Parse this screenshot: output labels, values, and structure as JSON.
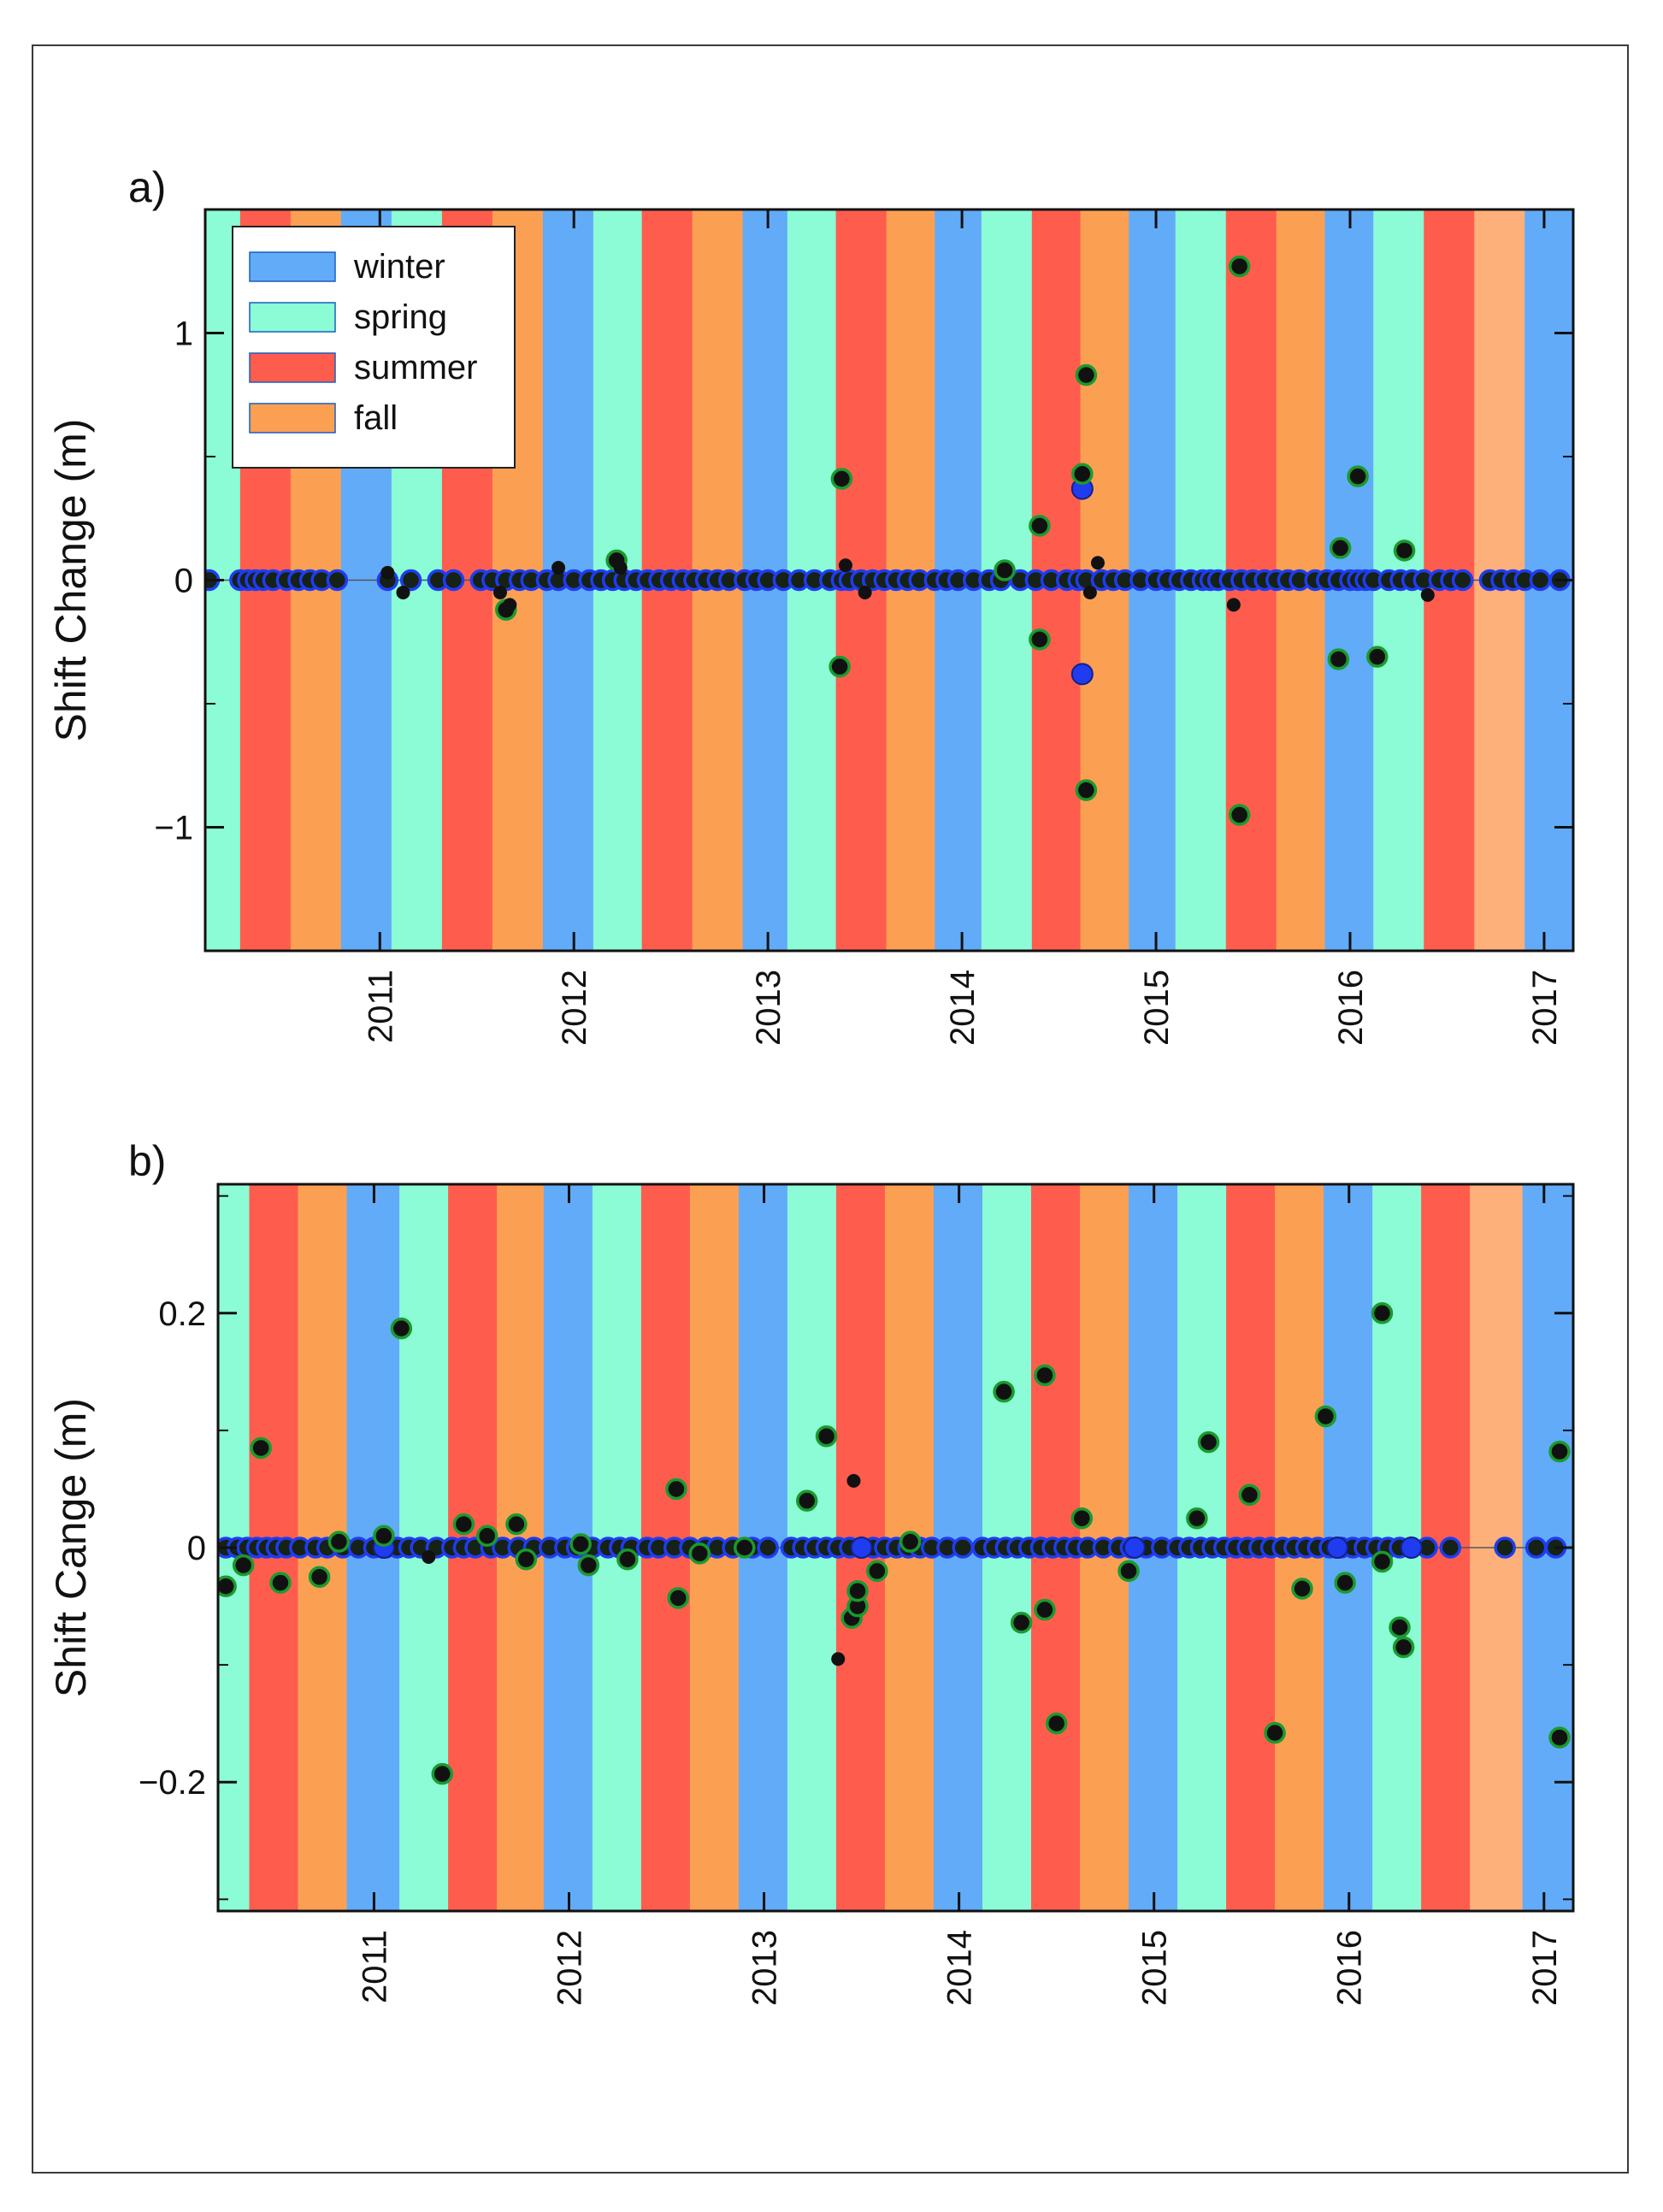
{
  "figure": {
    "panel_a_label": "a)",
    "panel_b_label": "b)"
  },
  "colors": {
    "winter": "#62abf8",
    "spring": "#8bfcd6",
    "summer": "#fe5d4e",
    "fall": "#fba053",
    "fall_light": "#fdb07a",
    "marker_blue": "#1f3cf0",
    "marker_green": "#1a9a2e",
    "marker_black": "#111111"
  },
  "legend": {
    "items": [
      {
        "label": "winter",
        "season": "winter"
      },
      {
        "label": "spring",
        "season": "spring"
      },
      {
        "label": "summer",
        "season": "summer"
      },
      {
        "label": "fall",
        "season": "fall"
      }
    ]
  },
  "chart_data": [
    {
      "type": "scatter",
      "panel": "a",
      "ylabel": "Shift Change (m)",
      "xlim": [
        2010.1,
        2017.15
      ],
      "ylim": [
        -1.5,
        1.5
      ],
      "yticks": [
        -1,
        0,
        1
      ],
      "ytick_labels": [
        "−1",
        "0",
        "1"
      ],
      "xticks": [
        2011,
        2012,
        2013,
        2014,
        2015,
        2016,
        2017
      ],
      "xtick_labels": [
        "2011",
        "2012",
        "2013",
        "2014",
        "2015",
        "2016",
        "2017"
      ],
      "legend_position": "top-left",
      "season_bands": [
        {
          "start": 2010.1,
          "end": 2010.28,
          "season": "spring"
        },
        {
          "start": 2010.28,
          "end": 2010.54,
          "season": "summer"
        },
        {
          "start": 2010.54,
          "end": 2010.8,
          "season": "fall"
        },
        {
          "start": 2010.8,
          "end": 2011.06,
          "season": "winter"
        },
        {
          "start": 2011.06,
          "end": 2011.32,
          "season": "spring"
        },
        {
          "start": 2011.32,
          "end": 2011.58,
          "season": "summer"
        },
        {
          "start": 2011.58,
          "end": 2011.84,
          "season": "fall"
        },
        {
          "start": 2011.84,
          "end": 2012.1,
          "season": "winter"
        },
        {
          "start": 2012.1,
          "end": 2012.35,
          "season": "spring"
        },
        {
          "start": 2012.35,
          "end": 2012.61,
          "season": "summer"
        },
        {
          "start": 2012.61,
          "end": 2012.87,
          "season": "fall"
        },
        {
          "start": 2012.87,
          "end": 2013.1,
          "season": "winter"
        },
        {
          "start": 2013.1,
          "end": 2013.35,
          "season": "spring"
        },
        {
          "start": 2013.35,
          "end": 2013.61,
          "season": "summer"
        },
        {
          "start": 2013.61,
          "end": 2013.86,
          "season": "fall"
        },
        {
          "start": 2013.86,
          "end": 2014.1,
          "season": "winter"
        },
        {
          "start": 2014.1,
          "end": 2014.36,
          "season": "spring"
        },
        {
          "start": 2014.36,
          "end": 2014.61,
          "season": "summer"
        },
        {
          "start": 2014.61,
          "end": 2014.86,
          "season": "fall"
        },
        {
          "start": 2014.86,
          "end": 2015.1,
          "season": "winter"
        },
        {
          "start": 2015.1,
          "end": 2015.36,
          "season": "spring"
        },
        {
          "start": 2015.36,
          "end": 2015.62,
          "season": "summer"
        },
        {
          "start": 2015.62,
          "end": 2015.87,
          "season": "fall"
        },
        {
          "start": 2015.87,
          "end": 2016.12,
          "season": "winter"
        },
        {
          "start": 2016.12,
          "end": 2016.38,
          "season": "spring"
        },
        {
          "start": 2016.38,
          "end": 2016.64,
          "season": "summer"
        },
        {
          "start": 2016.64,
          "end": 2016.9,
          "season": "fall_light"
        },
        {
          "start": 2016.9,
          "end": 2017.15,
          "season": "winter"
        }
      ],
      "zero_series": [
        2010.12,
        2010.28,
        2010.32,
        2010.36,
        2010.4,
        2010.45,
        2010.52,
        2010.58,
        2010.64,
        2010.7,
        2010.78,
        2011.04,
        2011.16,
        2011.3,
        2011.38,
        2011.52,
        2011.58,
        2011.65,
        2011.72,
        2011.78,
        2011.86,
        2011.92,
        2012.0,
        2012.08,
        2012.14,
        2012.2,
        2012.26,
        2012.32,
        2012.38,
        2012.44,
        2012.5,
        2012.56,
        2012.62,
        2012.68,
        2012.74,
        2012.8,
        2012.88,
        2012.94,
        2013.0,
        2013.08,
        2013.16,
        2013.24,
        2013.32,
        2013.38,
        2013.42,
        2013.48,
        2013.54,
        2013.6,
        2013.66,
        2013.72,
        2013.78,
        2013.86,
        2013.92,
        2013.98,
        2014.06,
        2014.14,
        2014.2,
        2014.3,
        2014.38,
        2014.46,
        2014.54,
        2014.6,
        2014.64,
        2014.72,
        2014.78,
        2014.84,
        2014.92,
        2015.0,
        2015.06,
        2015.12,
        2015.18,
        2015.24,
        2015.28,
        2015.32,
        2015.38,
        2015.44,
        2015.5,
        2015.56,
        2015.62,
        2015.68,
        2015.74,
        2015.82,
        2015.88,
        2015.94,
        2016.0,
        2016.04,
        2016.08,
        2016.12,
        2016.2,
        2016.26,
        2016.32,
        2016.38,
        2016.46,
        2016.52,
        2016.58,
        2016.72,
        2016.78,
        2016.84,
        2016.9,
        2016.98,
        2017.08
      ],
      "green_points": [
        {
          "x": 2011.65,
          "y": -0.12
        },
        {
          "x": 2012.22,
          "y": 0.08
        },
        {
          "x": 2013.38,
          "y": 0.41
        },
        {
          "x": 2013.37,
          "y": -0.35
        },
        {
          "x": 2014.22,
          "y": 0.04
        },
        {
          "x": 2014.4,
          "y": 0.22
        },
        {
          "x": 2014.4,
          "y": -0.24
        },
        {
          "x": 2014.62,
          "y": 0.43
        },
        {
          "x": 2014.64,
          "y": 0.83
        },
        {
          "x": 2014.64,
          "y": -0.85
        },
        {
          "x": 2015.43,
          "y": 1.27
        },
        {
          "x": 2015.43,
          "y": -0.95
        },
        {
          "x": 2015.95,
          "y": 0.13
        },
        {
          "x": 2015.94,
          "y": -0.32
        },
        {
          "x": 2016.04,
          "y": 0.42
        },
        {
          "x": 2016.14,
          "y": -0.31
        },
        {
          "x": 2016.28,
          "y": 0.12
        }
      ],
      "black_points": [
        {
          "x": 2011.04,
          "y": 0.03
        },
        {
          "x": 2011.12,
          "y": -0.05
        },
        {
          "x": 2011.62,
          "y": -0.05
        },
        {
          "x": 2011.67,
          "y": -0.1
        },
        {
          "x": 2011.92,
          "y": 0.05
        },
        {
          "x": 2012.24,
          "y": 0.05
        },
        {
          "x": 2013.4,
          "y": 0.06
        },
        {
          "x": 2013.5,
          "y": -0.05
        },
        {
          "x": 2014.7,
          "y": 0.07
        },
        {
          "x": 2014.66,
          "y": -0.05
        },
        {
          "x": 2015.4,
          "y": -0.1
        },
        {
          "x": 2016.4,
          "y": -0.06
        }
      ],
      "blue_points": [
        {
          "x": 2014.62,
          "y": 0.37
        },
        {
          "x": 2014.62,
          "y": -0.38
        }
      ]
    },
    {
      "type": "scatter",
      "panel": "b",
      "ylabel": "Shift Cange (m)",
      "xlim": [
        2010.2,
        2017.15
      ],
      "ylim": [
        -0.31,
        0.31
      ],
      "yticks": [
        -0.2,
        0,
        0.2
      ],
      "ytick_labels": [
        "−0.2",
        "0",
        "0.2"
      ],
      "xticks": [
        2011,
        2012,
        2013,
        2014,
        2015,
        2016,
        2017
      ],
      "xtick_labels": [
        "2011",
        "2012",
        "2013",
        "2014",
        "2015",
        "2016",
        "2017"
      ],
      "season_bands": [
        {
          "start": 2010.2,
          "end": 2010.36,
          "season": "spring"
        },
        {
          "start": 2010.36,
          "end": 2010.61,
          "season": "summer"
        },
        {
          "start": 2010.61,
          "end": 2010.86,
          "season": "fall"
        },
        {
          "start": 2010.86,
          "end": 2011.13,
          "season": "winter"
        },
        {
          "start": 2011.13,
          "end": 2011.38,
          "season": "spring"
        },
        {
          "start": 2011.38,
          "end": 2011.63,
          "season": "summer"
        },
        {
          "start": 2011.63,
          "end": 2011.87,
          "season": "fall"
        },
        {
          "start": 2011.87,
          "end": 2012.12,
          "season": "winter"
        },
        {
          "start": 2012.12,
          "end": 2012.37,
          "season": "spring"
        },
        {
          "start": 2012.37,
          "end": 2012.62,
          "season": "summer"
        },
        {
          "start": 2012.62,
          "end": 2012.87,
          "season": "fall"
        },
        {
          "start": 2012.87,
          "end": 2013.12,
          "season": "winter"
        },
        {
          "start": 2013.12,
          "end": 2013.37,
          "season": "spring"
        },
        {
          "start": 2013.37,
          "end": 2013.62,
          "season": "summer"
        },
        {
          "start": 2013.62,
          "end": 2013.87,
          "season": "fall"
        },
        {
          "start": 2013.87,
          "end": 2014.12,
          "season": "winter"
        },
        {
          "start": 2014.12,
          "end": 2014.37,
          "season": "spring"
        },
        {
          "start": 2014.37,
          "end": 2014.62,
          "season": "summer"
        },
        {
          "start": 2014.62,
          "end": 2014.87,
          "season": "fall"
        },
        {
          "start": 2014.87,
          "end": 2015.12,
          "season": "winter"
        },
        {
          "start": 2015.12,
          "end": 2015.37,
          "season": "spring"
        },
        {
          "start": 2015.37,
          "end": 2015.62,
          "season": "summer"
        },
        {
          "start": 2015.62,
          "end": 2015.87,
          "season": "fall"
        },
        {
          "start": 2015.87,
          "end": 2016.12,
          "season": "winter"
        },
        {
          "start": 2016.12,
          "end": 2016.37,
          "season": "spring"
        },
        {
          "start": 2016.37,
          "end": 2016.62,
          "season": "summer"
        },
        {
          "start": 2016.62,
          "end": 2016.89,
          "season": "fall_light"
        },
        {
          "start": 2016.89,
          "end": 2017.15,
          "season": "winter"
        }
      ],
      "zero_series": [
        2010.24,
        2010.3,
        2010.35,
        2010.4,
        2010.45,
        2010.5,
        2010.55,
        2010.62,
        2010.7,
        2010.76,
        2010.84,
        2010.92,
        2011.0,
        2011.06,
        2011.12,
        2011.18,
        2011.24,
        2011.32,
        2011.4,
        2011.46,
        2011.52,
        2011.6,
        2011.66,
        2011.74,
        2011.82,
        2011.9,
        2011.98,
        2012.04,
        2012.12,
        2012.2,
        2012.26,
        2012.32,
        2012.4,
        2012.46,
        2012.54,
        2012.62,
        2012.7,
        2012.76,
        2012.84,
        2012.94,
        2013.02,
        2013.14,
        2013.2,
        2013.26,
        2013.32,
        2013.38,
        2013.44,
        2013.5,
        2013.56,
        2013.62,
        2013.68,
        2013.74,
        2013.8,
        2013.86,
        2013.94,
        2014.02,
        2014.12,
        2014.18,
        2014.24,
        2014.3,
        2014.36,
        2014.42,
        2014.48,
        2014.54,
        2014.6,
        2014.66,
        2014.74,
        2014.82,
        2014.88,
        2014.96,
        2015.04,
        2015.12,
        2015.18,
        2015.24,
        2015.3,
        2015.36,
        2015.42,
        2015.48,
        2015.54,
        2015.6,
        2015.66,
        2015.72,
        2015.78,
        2015.84,
        2015.9,
        2015.96,
        2016.02,
        2016.08,
        2016.14,
        2016.2,
        2016.26,
        2016.32,
        2016.4,
        2016.52,
        2016.8,
        2016.96,
        2017.06
      ],
      "green_points": [
        {
          "x": 2010.24,
          "y": -0.033
        },
        {
          "x": 2010.33,
          "y": -0.015
        },
        {
          "x": 2010.42,
          "y": 0.085
        },
        {
          "x": 2010.52,
          "y": -0.03
        },
        {
          "x": 2010.72,
          "y": -0.025
        },
        {
          "x": 2010.82,
          "y": 0.005
        },
        {
          "x": 2011.05,
          "y": 0.01
        },
        {
          "x": 2011.14,
          "y": 0.187
        },
        {
          "x": 2011.35,
          "y": -0.193
        },
        {
          "x": 2011.46,
          "y": 0.02
        },
        {
          "x": 2011.58,
          "y": 0.01
        },
        {
          "x": 2011.73,
          "y": 0.02
        },
        {
          "x": 2011.78,
          "y": -0.01
        },
        {
          "x": 2012.06,
          "y": 0.003
        },
        {
          "x": 2012.1,
          "y": -0.015
        },
        {
          "x": 2012.3,
          "y": -0.01
        },
        {
          "x": 2012.55,
          "y": 0.05
        },
        {
          "x": 2012.56,
          "y": -0.043
        },
        {
          "x": 2012.67,
          "y": -0.005
        },
        {
          "x": 2012.9,
          "y": 0.0
        },
        {
          "x": 2013.22,
          "y": 0.04
        },
        {
          "x": 2013.32,
          "y": 0.095
        },
        {
          "x": 2013.45,
          "y": -0.06
        },
        {
          "x": 2013.48,
          "y": -0.05
        },
        {
          "x": 2013.48,
          "y": -0.037
        },
        {
          "x": 2013.58,
          "y": -0.02
        },
        {
          "x": 2013.75,
          "y": 0.005
        },
        {
          "x": 2014.23,
          "y": 0.133
        },
        {
          "x": 2014.32,
          "y": -0.064
        },
        {
          "x": 2014.44,
          "y": 0.147
        },
        {
          "x": 2014.44,
          "y": -0.053
        },
        {
          "x": 2014.5,
          "y": -0.15
        },
        {
          "x": 2014.63,
          "y": 0.025
        },
        {
          "x": 2014.87,
          "y": -0.02
        },
        {
          "x": 2015.22,
          "y": 0.025
        },
        {
          "x": 2015.28,
          "y": 0.09
        },
        {
          "x": 2015.49,
          "y": 0.045
        },
        {
          "x": 2015.62,
          "y": -0.158
        },
        {
          "x": 2015.76,
          "y": -0.035
        },
        {
          "x": 2015.88,
          "y": 0.112
        },
        {
          "x": 2015.98,
          "y": -0.03
        },
        {
          "x": 2016.17,
          "y": 0.2
        },
        {
          "x": 2016.17,
          "y": -0.012
        },
        {
          "x": 2016.26,
          "y": -0.068
        },
        {
          "x": 2016.28,
          "y": -0.085
        },
        {
          "x": 2017.08,
          "y": 0.082
        },
        {
          "x": 2017.08,
          "y": -0.162
        }
      ],
      "black_points": [
        {
          "x": 2011.28,
          "y": -0.008
        },
        {
          "x": 2013.38,
          "y": -0.095
        },
        {
          "x": 2013.46,
          "y": 0.057
        }
      ],
      "blue_points": [
        {
          "x": 2011.05,
          "y": 0.0
        },
        {
          "x": 2013.5,
          "y": 0.0
        },
        {
          "x": 2014.9,
          "y": 0.0
        },
        {
          "x": 2015.94,
          "y": 0.0
        },
        {
          "x": 2016.32,
          "y": 0.0
        }
      ]
    }
  ]
}
